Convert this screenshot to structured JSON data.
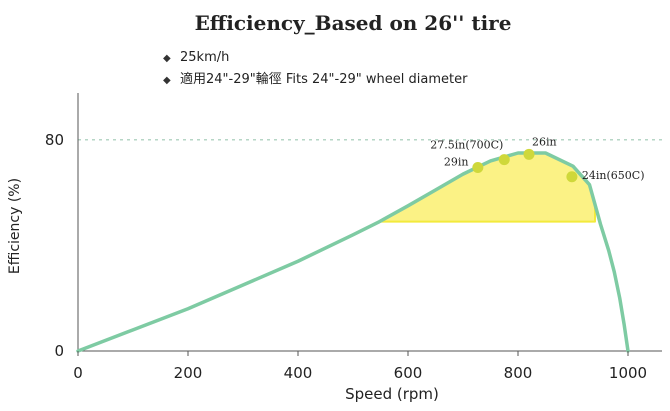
{
  "chart_data": {
    "type": "line",
    "title": "Efficiency_Based on 26'' tire",
    "notes": [
      {
        "bullet": "◆",
        "text": "25km/h"
      },
      {
        "bullet": "◆",
        "text": "適用24\"-29\"輪徑  Fits 24\"-29\" wheel diameter"
      }
    ],
    "xlabel": "Speed (rpm)",
    "ylabel": "Efficiency (%)",
    "xlim": [
      0,
      1000
    ],
    "ylim": [
      0,
      100
    ],
    "xticks": [
      0,
      200,
      400,
      600,
      800,
      1000
    ],
    "yticks": [
      0,
      80
    ],
    "reference_line": {
      "y": 80,
      "style": "dotted",
      "color": "#9ec9b4"
    },
    "series": [
      {
        "color": "#7ecba3",
        "points": [
          [
            0,
            0
          ],
          [
            100,
            8
          ],
          [
            200,
            16
          ],
          [
            300,
            25
          ],
          [
            400,
            34
          ],
          [
            500,
            44
          ],
          [
            548,
            49
          ],
          [
            600,
            55
          ],
          [
            650,
            61
          ],
          [
            700,
            67
          ],
          [
            750,
            72
          ],
          [
            800,
            75
          ],
          [
            850,
            75
          ],
          [
            900,
            70
          ],
          [
            930,
            63
          ],
          [
            950,
            48
          ],
          [
            965,
            38
          ],
          [
            975,
            30
          ],
          [
            985,
            20
          ],
          [
            993,
            10
          ],
          [
            1000,
            0
          ]
        ]
      }
    ],
    "highlight": {
      "color": "#fbf285",
      "edge_color": "#f3ea3c",
      "base_y": 49,
      "x_range": [
        548,
        940
      ]
    },
    "markers": [
      {
        "label": "29in",
        "x": 727,
        "y": 69.5
      },
      {
        "label": "27.5in(700C)",
        "x": 775,
        "y": 72.5
      },
      {
        "label": "26in",
        "x": 820,
        "y": 74.5
      },
      {
        "label": "24in(650C)",
        "x": 898,
        "y": 66
      }
    ],
    "marker_color": "#cfd83a"
  }
}
